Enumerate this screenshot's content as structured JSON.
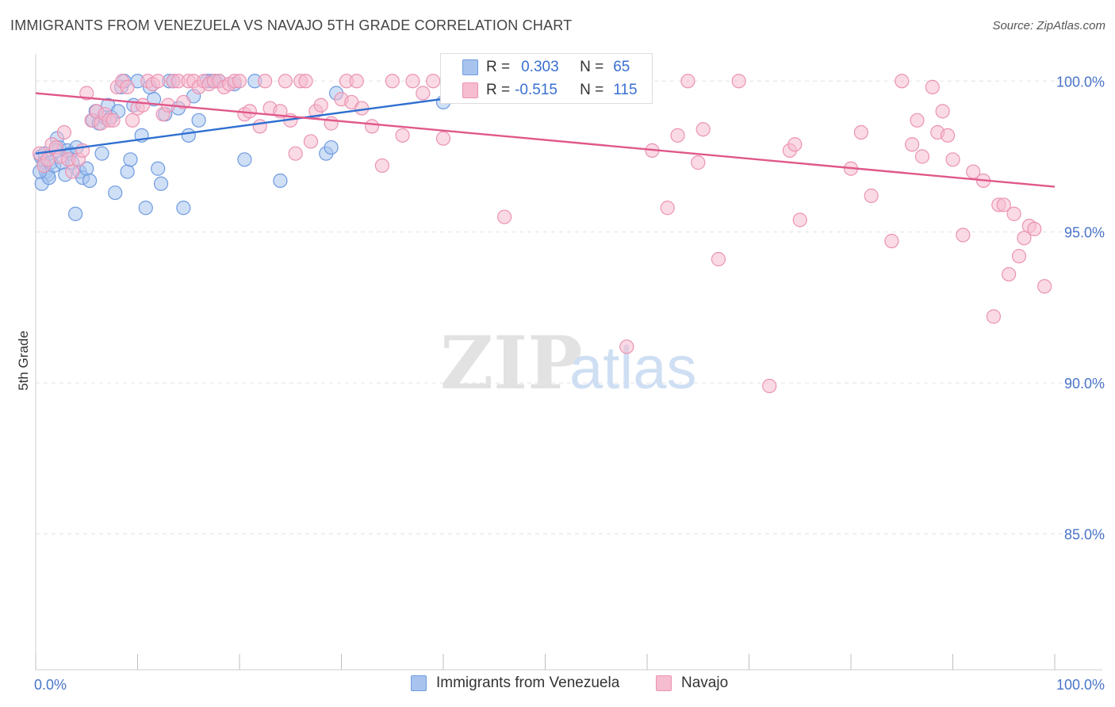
{
  "title": "IMMIGRANTS FROM VENEZUELA VS NAVAJO 5TH GRADE CORRELATION CHART",
  "source": "Source: ZipAtlas.com",
  "watermark": {
    "zip": "ZIP",
    "atlas": "atlas"
  },
  "legend": {
    "r_label": "R =",
    "n_label": "N =",
    "series": [
      {
        "r": "0.303",
        "n": "65"
      },
      {
        "r": "-0.515",
        "n": "115"
      }
    ]
  },
  "colors": {
    "blue_fill": "#a8c4ee",
    "blue_stroke": "#6f9be0",
    "blue_line": "#2f6fd0",
    "pink_fill": "#f6bcd0",
    "pink_stroke": "#eb93b2",
    "pink_line": "#e0588a"
  },
  "chart_data": {
    "type": "scatter",
    "title": "IMMIGRANTS FROM VENEZUELA VS NAVAJO 5TH GRADE CORRELATION CHART",
    "xlabel": "",
    "ylabel": "5th Grade",
    "xlim": [
      0,
      100
    ],
    "ylim": [
      80.5,
      100.9
    ],
    "x_tick_labels": [
      "0.0%",
      "100.0%"
    ],
    "y_ticks": [
      100,
      95,
      90,
      85
    ],
    "y_tick_labels": [
      "100.0%",
      "95.0%",
      "90.0%",
      "85.0%"
    ],
    "grid": true,
    "legend_position": "bottom-center",
    "series": [
      {
        "name": "Immigrants from Venezuela",
        "color": "#6f9be0",
        "trend": {
          "x": [
            0,
            42
          ],
          "y": [
            97.6,
            99.5
          ]
        },
        "points": [
          [
            0.5,
            97.5
          ],
          [
            0.8,
            97.3
          ],
          [
            1.0,
            97.0
          ],
          [
            1.2,
            96.9
          ],
          [
            0.6,
            96.6
          ],
          [
            0.9,
            97.6
          ],
          [
            1.5,
            97.3
          ],
          [
            1.8,
            97.2
          ],
          [
            2.1,
            98.1
          ],
          [
            2.3,
            97.8
          ],
          [
            2.6,
            97.3
          ],
          [
            2.9,
            96.9
          ],
          [
            3.1,
            97.7
          ],
          [
            3.4,
            97.6
          ],
          [
            3.6,
            97.3
          ],
          [
            4.0,
            97.8
          ],
          [
            4.3,
            97.0
          ],
          [
            4.6,
            96.8
          ],
          [
            5.0,
            97.1
          ],
          [
            5.3,
            96.7
          ],
          [
            5.6,
            98.7
          ],
          [
            5.9,
            99.0
          ],
          [
            6.2,
            98.6
          ],
          [
            6.5,
            97.6
          ],
          [
            6.8,
            98.8
          ],
          [
            7.1,
            99.2
          ],
          [
            7.4,
            98.8
          ],
          [
            7.8,
            96.3
          ],
          [
            8.1,
            99.0
          ],
          [
            8.4,
            99.8
          ],
          [
            8.7,
            100.0
          ],
          [
            9.0,
            97.0
          ],
          [
            9.3,
            97.4
          ],
          [
            9.6,
            99.2
          ],
          [
            10.0,
            100.0
          ],
          [
            10.4,
            98.2
          ],
          [
            10.8,
            95.8
          ],
          [
            11.2,
            99.8
          ],
          [
            11.6,
            99.4
          ],
          [
            12.0,
            97.1
          ],
          [
            12.3,
            96.6
          ],
          [
            12.7,
            98.9
          ],
          [
            13.1,
            100.0
          ],
          [
            13.5,
            100.0
          ],
          [
            14.0,
            99.1
          ],
          [
            14.5,
            95.8
          ],
          [
            15.0,
            98.2
          ],
          [
            15.5,
            99.5
          ],
          [
            16.0,
            98.7
          ],
          [
            16.8,
            100.0
          ],
          [
            17.2,
            100.0
          ],
          [
            17.6,
            100.0
          ],
          [
            18.0,
            100.0
          ],
          [
            19.5,
            99.9
          ],
          [
            20.5,
            97.4
          ],
          [
            21.5,
            100.0
          ],
          [
            24.0,
            96.7
          ],
          [
            28.5,
            97.6
          ],
          [
            29.0,
            97.8
          ],
          [
            29.5,
            99.6
          ],
          [
            3.9,
            95.6
          ],
          [
            1.3,
            96.8
          ],
          [
            2.0,
            97.7
          ],
          [
            0.4,
            97.0
          ],
          [
            40.0,
            99.3
          ]
        ]
      },
      {
        "name": "Navajo",
        "color": "#eb93b2",
        "trend": {
          "x": [
            0,
            100
          ],
          "y": [
            99.6,
            96.5
          ]
        },
        "points": [
          [
            0.4,
            97.6
          ],
          [
            0.8,
            97.2
          ],
          [
            1.2,
            97.4
          ],
          [
            1.6,
            97.9
          ],
          [
            2.0,
            97.8
          ],
          [
            2.4,
            97.5
          ],
          [
            2.8,
            98.3
          ],
          [
            3.2,
            97.4
          ],
          [
            3.6,
            97.0
          ],
          [
            4.2,
            97.4
          ],
          [
            4.6,
            97.7
          ],
          [
            5.0,
            99.6
          ],
          [
            5.5,
            98.7
          ],
          [
            6.0,
            99.0
          ],
          [
            6.4,
            98.6
          ],
          [
            6.8,
            98.9
          ],
          [
            7.2,
            98.7
          ],
          [
            7.6,
            98.7
          ],
          [
            8.0,
            99.8
          ],
          [
            8.5,
            100.0
          ],
          [
            9.0,
            99.8
          ],
          [
            9.5,
            98.7
          ],
          [
            10.0,
            99.1
          ],
          [
            10.5,
            99.2
          ],
          [
            11.0,
            100.0
          ],
          [
            11.5,
            99.9
          ],
          [
            12.0,
            100.0
          ],
          [
            12.5,
            98.9
          ],
          [
            13.0,
            99.2
          ],
          [
            13.5,
            100.0
          ],
          [
            14.0,
            100.0
          ],
          [
            14.5,
            99.3
          ],
          [
            15.0,
            100.0
          ],
          [
            15.5,
            100.0
          ],
          [
            16.0,
            99.8
          ],
          [
            16.5,
            100.0
          ],
          [
            17.0,
            99.9
          ],
          [
            17.5,
            100.0
          ],
          [
            18.0,
            100.0
          ],
          [
            18.5,
            99.8
          ],
          [
            19.0,
            99.9
          ],
          [
            19.5,
            100.0
          ],
          [
            20.0,
            100.0
          ],
          [
            20.5,
            98.9
          ],
          [
            21.0,
            99.0
          ],
          [
            22.0,
            98.5
          ],
          [
            22.5,
            100.0
          ],
          [
            23.0,
            99.1
          ],
          [
            24.0,
            99.0
          ],
          [
            24.5,
            100.0
          ],
          [
            25.0,
            98.7
          ],
          [
            25.5,
            97.6
          ],
          [
            26.0,
            100.0
          ],
          [
            26.5,
            100.0
          ],
          [
            27.0,
            98.0
          ],
          [
            27.5,
            99.0
          ],
          [
            28.0,
            99.2
          ],
          [
            29.0,
            98.6
          ],
          [
            30.0,
            99.4
          ],
          [
            30.5,
            100.0
          ],
          [
            31.0,
            99.3
          ],
          [
            31.5,
            100.0
          ],
          [
            32.0,
            99.1
          ],
          [
            33.0,
            98.5
          ],
          [
            34.0,
            97.2
          ],
          [
            35.0,
            100.0
          ],
          [
            36.0,
            98.2
          ],
          [
            37.0,
            100.0
          ],
          [
            38.0,
            99.6
          ],
          [
            39.0,
            100.0
          ],
          [
            40.0,
            98.1
          ],
          [
            42.0,
            99.7
          ],
          [
            44.0,
            100.0
          ],
          [
            46.0,
            95.5
          ],
          [
            49.0,
            100.0
          ],
          [
            51.0,
            99.5
          ],
          [
            53.0,
            100.0
          ],
          [
            56.0,
            100.0
          ],
          [
            58.0,
            91.2
          ],
          [
            59.0,
            100.0
          ],
          [
            60.5,
            97.7
          ],
          [
            62.0,
            95.8
          ],
          [
            63.0,
            98.2
          ],
          [
            64.0,
            100.0
          ],
          [
            65.0,
            97.3
          ],
          [
            65.5,
            98.4
          ],
          [
            67.0,
            94.1
          ],
          [
            69.0,
            100.0
          ],
          [
            72.0,
            89.9
          ],
          [
            74.0,
            97.7
          ],
          [
            74.5,
            97.9
          ],
          [
            75.0,
            95.4
          ],
          [
            80.0,
            97.1
          ],
          [
            81.0,
            98.3
          ],
          [
            82.0,
            96.2
          ],
          [
            84.0,
            94.7
          ],
          [
            85.0,
            100.0
          ],
          [
            86.0,
            97.9
          ],
          [
            87.0,
            97.5
          ],
          [
            88.0,
            99.8
          ],
          [
            88.5,
            98.3
          ],
          [
            89.0,
            99.0
          ],
          [
            89.5,
            98.2
          ],
          [
            90.0,
            97.4
          ],
          [
            91.0,
            94.9
          ],
          [
            92.0,
            97.0
          ],
          [
            93.0,
            96.7
          ],
          [
            94.0,
            92.2
          ],
          [
            94.5,
            95.9
          ],
          [
            95.0,
            95.9
          ],
          [
            95.5,
            93.6
          ],
          [
            96.0,
            95.6
          ],
          [
            96.5,
            94.2
          ],
          [
            97.0,
            94.8
          ],
          [
            97.5,
            95.2
          ],
          [
            98.0,
            95.1
          ],
          [
            99.0,
            93.2
          ],
          [
            86.5,
            98.7
          ]
        ]
      }
    ]
  },
  "bottom_legend": [
    {
      "label": "Immigrants from Venezuela"
    },
    {
      "label": "Navajo"
    }
  ]
}
